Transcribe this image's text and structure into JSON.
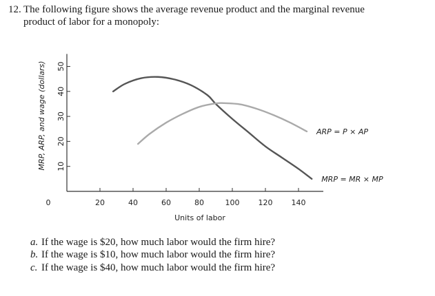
{
  "question": {
    "number": "12.",
    "line1": "The following figure shows the average revenue product and the marginal revenue",
    "line2": "product of labor for a monopoly:"
  },
  "chart_data": {
    "type": "line",
    "xlabel": "Units of labor",
    "ylabel": "MRP, ARP, and wage (dollars)",
    "xlim": [
      0,
      155
    ],
    "ylim": [
      0,
      55
    ],
    "xticks": [
      0,
      20,
      40,
      60,
      80,
      100,
      120,
      140
    ],
    "yticks": [
      10,
      20,
      30,
      40,
      50
    ],
    "grid": false,
    "series": [
      {
        "name": "MRP = MR × MP",
        "color": "#555555",
        "x": [
          28,
          35,
          45,
          55,
          65,
          75,
          85,
          90,
          100,
          110,
          120,
          130,
          140,
          148
        ],
        "y": [
          40,
          43,
          45.3,
          45.8,
          44.8,
          42.5,
          38.5,
          35,
          29,
          23.5,
          18,
          13.5,
          9,
          5
        ]
      },
      {
        "name": "ARP = P × AP",
        "color": "#aaaaaa",
        "x": [
          43,
          50,
          60,
          70,
          80,
          90,
          95,
          105,
          115,
          125,
          135,
          145
        ],
        "y": [
          19,
          23,
          27.5,
          31,
          33.8,
          35.2,
          35.3,
          34.8,
          33,
          30.5,
          27.5,
          24
        ]
      }
    ]
  },
  "parts": [
    {
      "label": "a.",
      "text": "If the wage is $20, how much labor would the firm hire?"
    },
    {
      "label": "b.",
      "text": "If the wage is $10, how much labor would the firm hire?"
    },
    {
      "label": "c.",
      "text": "If the wage is $40, how much labor would the firm hire?"
    }
  ]
}
